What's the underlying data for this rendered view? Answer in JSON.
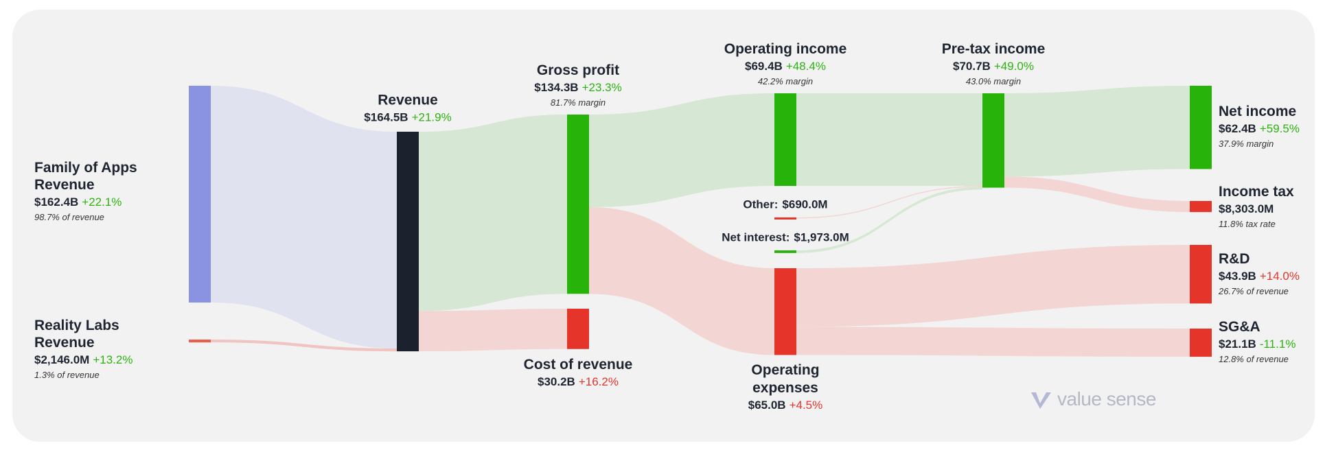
{
  "chart_data": {
    "type": "sankey",
    "nodes": [
      {
        "name": "Family of Apps Revenue",
        "value": 162.4,
        "value_label": "$162.4B",
        "change": 22.1,
        "change_label": "+22.1%",
        "change_color": "#2db30f",
        "note": "98.7% of revenue",
        "color": "#8a93e2"
      },
      {
        "name": "Reality Labs Revenue",
        "value": 2.146,
        "value_label": "$2,146.0M",
        "change": 13.2,
        "change_label": "+13.2%",
        "change_color": "#2db30f",
        "note": "1.3% of revenue",
        "color": "#e8604c"
      },
      {
        "name": "Revenue",
        "value": 164.5,
        "value_label": "$164.5B",
        "change": 21.9,
        "change_label": "+21.9%",
        "change_color": "#2db30f",
        "color": "#1b222d"
      },
      {
        "name": "Gross profit",
        "value": 134.3,
        "value_label": "$134.3B",
        "change": 23.3,
        "change_label": "+23.3%",
        "change_color": "#2db30f",
        "note": "81.7% margin",
        "color": "#27b30a"
      },
      {
        "name": "Cost of revenue",
        "value": 30.2,
        "value_label": "$30.2B",
        "change": 16.2,
        "change_label": "+16.2%",
        "change_color": "#e5352b",
        "color": "#e5352b"
      },
      {
        "name": "Operating income",
        "value": 69.4,
        "value_label": "$69.4B",
        "change": 48.4,
        "change_label": "+48.4%",
        "change_color": "#2db30f",
        "note": "42.2% margin",
        "color": "#27b30a"
      },
      {
        "name": "Operating expenses",
        "value": 65.0,
        "value_label": "$65.0B",
        "change": 4.5,
        "change_label": "+4.5%",
        "change_color": "#e5352b",
        "color": "#e5352b"
      },
      {
        "name": "Other:",
        "value": 0.69,
        "value_label": "$690.0M",
        "color": "#e5352b"
      },
      {
        "name": "Net interest:",
        "value": 1.973,
        "value_label": "$1,973.0M",
        "color": "#27b30a"
      },
      {
        "name": "Pre-tax income",
        "value": 70.7,
        "value_label": "$70.7B",
        "change": 49.0,
        "change_label": "+49.0%",
        "change_color": "#2db30f",
        "note": "43.0% margin",
        "color": "#27b30a"
      },
      {
        "name": "Net income",
        "value": 62.4,
        "value_label": "$62.4B",
        "change": 59.5,
        "change_label": "+59.5%",
        "change_color": "#2db30f",
        "note": "37.9% margin",
        "color": "#27b30a"
      },
      {
        "name": "Income tax",
        "value": 8.303,
        "value_label": "$8,303.0M",
        "note": "11.8% tax rate",
        "color": "#e5352b"
      },
      {
        "name": "R&D",
        "value": 43.9,
        "value_label": "$43.9B",
        "change": 14.0,
        "change_label": "+14.0%",
        "change_color": "#e5352b",
        "note": "26.7% of revenue",
        "color": "#e5352b"
      },
      {
        "name": "SG&A",
        "value": 21.1,
        "value_label": "$21.1B",
        "change": -11.1,
        "change_label": "-11.1%",
        "change_color": "#2db30f",
        "note": "12.8% of revenue",
        "color": "#e5352b"
      }
    ],
    "links": [
      {
        "source": 0,
        "target": 2,
        "value": 162.4,
        "color": "#e0e2f0"
      },
      {
        "source": 1,
        "target": 2,
        "value": 2.146,
        "color": "#f0c4c0"
      },
      {
        "source": 2,
        "target": 3,
        "value": 134.3,
        "color": "#d6e8d3"
      },
      {
        "source": 2,
        "target": 4,
        "value": 30.2,
        "color": "#f3d5d3"
      },
      {
        "source": 3,
        "target": 5,
        "value": 69.4,
        "color": "#d6e8d3"
      },
      {
        "source": 3,
        "target": 6,
        "value": 65.0,
        "color": "#f3d5d3"
      },
      {
        "source": 5,
        "target": 9,
        "value": 69.4,
        "color": "#d6e8d3"
      },
      {
        "source": 7,
        "target": 9,
        "value": 0.69,
        "color": "#f3d5d3"
      },
      {
        "source": 8,
        "target": 9,
        "value": 1.973,
        "color": "#d6e8d3"
      },
      {
        "source": 9,
        "target": 10,
        "value": 62.4,
        "color": "#d6e8d3"
      },
      {
        "source": 9,
        "target": 11,
        "value": 8.303,
        "color": "#f3d5d3"
      },
      {
        "source": 6,
        "target": 12,
        "value": 43.9,
        "color": "#f3d5d3"
      },
      {
        "source": 6,
        "target": 13,
        "value": 21.1,
        "color": "#f3d5d3"
      }
    ],
    "watermark": "value sense"
  }
}
